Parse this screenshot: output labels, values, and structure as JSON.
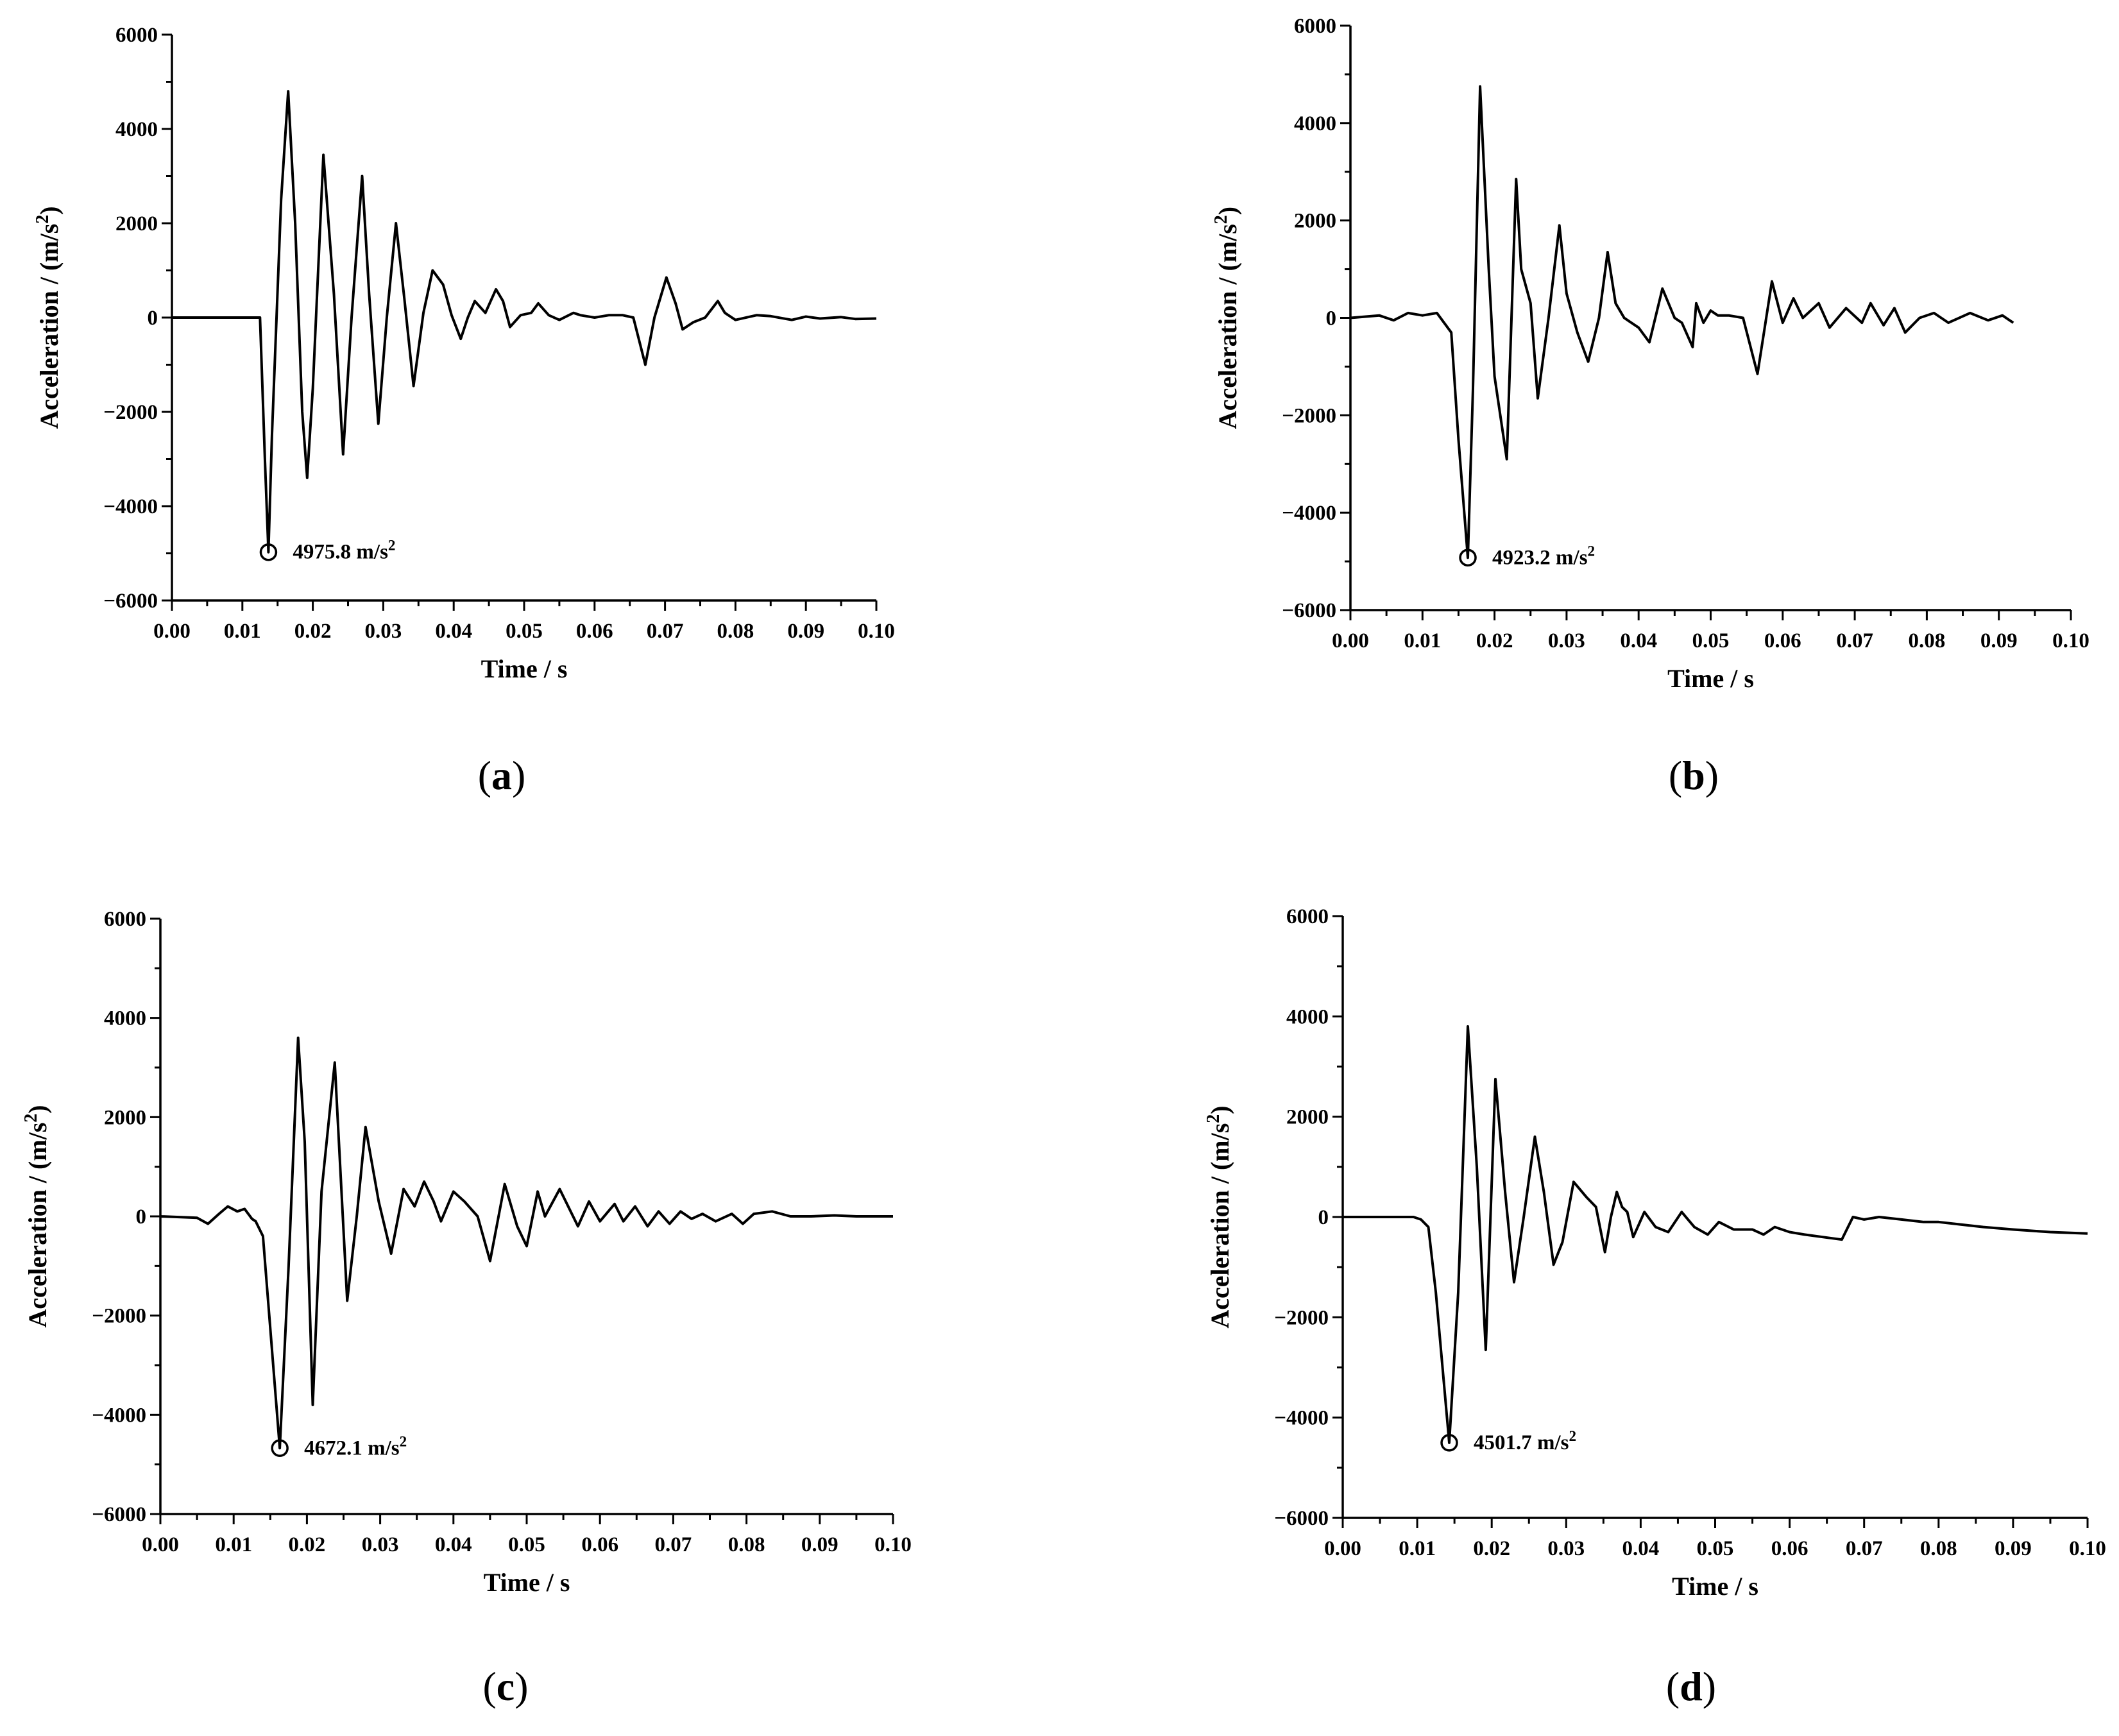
{
  "chart_data": [
    {
      "panel_label": "(a)",
      "panel_letter": "a",
      "type": "line",
      "xlabel": "Time / s",
      "ylabel": "Acceleration / (m/s2)",
      "xlim": [
        0,
        0.1
      ],
      "ylim": [
        -6000,
        6000
      ],
      "xticks": [
        "0.00",
        "0.01",
        "0.02",
        "0.03",
        "0.04",
        "0.05",
        "0.06",
        "0.07",
        "0.08",
        "0.09",
        "0.10"
      ],
      "yticks": [
        "6000",
        "4000",
        "2000",
        "0",
        "−2000",
        "−4000",
        "−6000"
      ],
      "annotation": {
        "text": "4975.8 m/s2",
        "x": 0.0137,
        "y": -4975.8
      },
      "series": [
        {
          "x": [
            0,
            0.0125,
            0.0132,
            0.0137,
            0.0142,
            0.0155,
            0.0165,
            0.0175,
            0.0185,
            0.0192,
            0.02,
            0.0215,
            0.023,
            0.0243,
            0.0255,
            0.027,
            0.028,
            0.0293,
            0.0305,
            0.0318,
            0.033,
            0.0343,
            0.0357,
            0.037,
            0.0385,
            0.0397,
            0.041,
            0.042,
            0.043,
            0.0445,
            0.046,
            0.047,
            0.048,
            0.0495,
            0.051,
            0.052,
            0.0535,
            0.055,
            0.057,
            0.058,
            0.06,
            0.062,
            0.064,
            0.0655,
            0.0672,
            0.0685,
            0.0702,
            0.0715,
            0.0725,
            0.074,
            0.0757,
            0.0775,
            0.0785,
            0.08,
            0.083,
            0.085,
            0.088,
            0.09,
            0.092,
            0.095,
            0.097,
            0.1
          ],
          "y": [
            0,
            0,
            -3000,
            -4975.8,
            -2500,
            2500,
            4800,
            2000,
            -2000,
            -3400,
            -1500,
            3450,
            500,
            -2900,
            0,
            3000,
            500,
            -2250,
            0,
            2000,
            400,
            -1450,
            100,
            1000,
            700,
            50,
            -450,
            0,
            350,
            100,
            600,
            350,
            -200,
            50,
            100,
            300,
            50,
            -50,
            100,
            50,
            0,
            50,
            50,
            0,
            -1000,
            0,
            850,
            300,
            -250,
            -100,
            0,
            350,
            100,
            -50,
            50,
            30,
            -50,
            20,
            -20,
            10,
            -30,
            -20
          ]
        }
      ]
    },
    {
      "panel_label": "(b)",
      "panel_letter": "b",
      "type": "line",
      "xlabel": "Time / s",
      "ylabel": "Acceleration / (m/s2)",
      "xlim": [
        0,
        0.1
      ],
      "ylim": [
        -6000,
        6000
      ],
      "xticks": [
        "0.00",
        "0.01",
        "0.02",
        "0.03",
        "0.04",
        "0.05",
        "0.06",
        "0.07",
        "0.08",
        "0.09",
        "0.10"
      ],
      "yticks": [
        "6000",
        "4000",
        "2000",
        "0",
        "−2000",
        "−4000",
        "−6000"
      ],
      "annotation": {
        "text": "4923.2 m/s2",
        "x": 0.0163,
        "y": -4923.2
      },
      "series": [
        {
          "x": [
            0,
            0.004,
            0.006,
            0.008,
            0.01,
            0.012,
            0.014,
            0.015,
            0.0163,
            0.017,
            0.018,
            0.0192,
            0.02,
            0.0217,
            0.023,
            0.0237,
            0.025,
            0.026,
            0.0275,
            0.029,
            0.03,
            0.0315,
            0.033,
            0.0345,
            0.0357,
            0.0368,
            0.038,
            0.04,
            0.0415,
            0.0433,
            0.045,
            0.046,
            0.0475,
            0.048,
            0.049,
            0.05,
            0.051,
            0.0525,
            0.0545,
            0.0565,
            0.0585,
            0.06,
            0.0615,
            0.0628,
            0.065,
            0.0665,
            0.0688,
            0.071,
            0.0722,
            0.074,
            0.0755,
            0.077,
            0.079,
            0.081,
            0.083,
            0.086,
            0.0885,
            0.0905,
            0.092
          ],
          "y": [
            0,
            50,
            -50,
            100,
            50,
            100,
            -300,
            -2500,
            -4923.2,
            -1500,
            4750,
            1000,
            -1200,
            -2900,
            2850,
            1000,
            300,
            -1650,
            0,
            1900,
            500,
            -300,
            -900,
            0,
            1350,
            300,
            0,
            -200,
            -500,
            600,
            0,
            -100,
            -600,
            300,
            -100,
            150,
            50,
            50,
            0,
            -1150,
            750,
            -100,
            400,
            0,
            300,
            -200,
            200,
            -100,
            300,
            -150,
            200,
            -300,
            0,
            100,
            -100,
            100,
            -50,
            50,
            -100
          ]
        }
      ]
    },
    {
      "panel_label": "(c)",
      "panel_letter": "c",
      "type": "line",
      "xlabel": "Time / s",
      "ylabel": "Acceleration / (m/s2)",
      "xlim": [
        0,
        0.1
      ],
      "ylim": [
        -6000,
        6000
      ],
      "xticks": [
        "0.00",
        "0.01",
        "0.02",
        "0.03",
        "0.04",
        "0.05",
        "0.06",
        "0.07",
        "0.08",
        "0.09",
        "0.10"
      ],
      "yticks": [
        "6000",
        "4000",
        "2000",
        "0",
        "−2000",
        "−4000",
        "−6000"
      ],
      "annotation": {
        "text": "4672.1 m/s2",
        "x": 0.0163,
        "y": -4672.1
      },
      "series": [
        {
          "x": [
            0,
            0.005,
            0.0065,
            0.008,
            0.0092,
            0.0105,
            0.0115,
            0.0125,
            0.013,
            0.014,
            0.0163,
            0.0175,
            0.0188,
            0.0197,
            0.0208,
            0.022,
            0.0238,
            0.0255,
            0.0268,
            0.028,
            0.0298,
            0.0315,
            0.0332,
            0.0347,
            0.036,
            0.0373,
            0.0383,
            0.04,
            0.0415,
            0.0433,
            0.045,
            0.047,
            0.0487,
            0.05,
            0.0515,
            0.0525,
            0.0545,
            0.057,
            0.0585,
            0.06,
            0.062,
            0.0632,
            0.0648,
            0.0665,
            0.068,
            0.0695,
            0.071,
            0.0725,
            0.074,
            0.0758,
            0.078,
            0.0795,
            0.081,
            0.0835,
            0.086,
            0.0888,
            0.092,
            0.095,
            0.1
          ],
          "y": [
            0,
            -30,
            -150,
            50,
            200,
            100,
            150,
            -50,
            -100,
            -400,
            -4672.1,
            -1000,
            3600,
            1500,
            -3800,
            500,
            3100,
            -1700,
            0,
            1800,
            300,
            -750,
            550,
            200,
            700,
            300,
            -100,
            500,
            300,
            0,
            -900,
            650,
            -200,
            -600,
            500,
            0,
            550,
            -200,
            300,
            -100,
            250,
            -100,
            200,
            -200,
            100,
            -150,
            100,
            -50,
            50,
            -100,
            50,
            -150,
            50,
            100,
            0,
            0,
            20,
            0,
            0
          ]
        }
      ]
    },
    {
      "panel_label": "(d)",
      "panel_letter": "d",
      "type": "line",
      "xlabel": "Time / s",
      "ylabel": "Acceleration / (m/s2)",
      "xlim": [
        0,
        0.1
      ],
      "ylim": [
        -6000,
        6000
      ],
      "xticks": [
        "0.00",
        "0.01",
        "0.02",
        "0.03",
        "0.04",
        "0.05",
        "0.06",
        "0.07",
        "0.08",
        "0.09",
        "0.10"
      ],
      "yticks": [
        "6000",
        "4000",
        "2000",
        "0",
        "−2000",
        "−4000",
        "−6000"
      ],
      "annotation": {
        "text": "4501.7 m/s2",
        "x": 0.0143,
        "y": -4501.7
      },
      "series": [
        {
          "x": [
            0,
            0.0095,
            0.0105,
            0.0115,
            0.0125,
            0.0143,
            0.0155,
            0.0168,
            0.018,
            0.0192,
            0.0205,
            0.0218,
            0.023,
            0.0243,
            0.0258,
            0.027,
            0.0283,
            0.0295,
            0.031,
            0.0327,
            0.034,
            0.0352,
            0.036,
            0.0368,
            0.0375,
            0.0382,
            0.039,
            0.0405,
            0.042,
            0.0437,
            0.0455,
            0.0472,
            0.049,
            0.0505,
            0.0525,
            0.055,
            0.0565,
            0.058,
            0.06,
            0.062,
            0.0645,
            0.067,
            0.0685,
            0.07,
            0.072,
            0.075,
            0.078,
            0.08,
            0.083,
            0.086,
            0.09,
            0.095,
            0.1
          ],
          "y": [
            0,
            0,
            -50,
            -200,
            -1500,
            -4501.7,
            -1500,
            3800,
            1000,
            -2650,
            2750,
            500,
            -1300,
            0,
            1600,
            500,
            -950,
            -500,
            700,
            400,
            200,
            -700,
            0,
            500,
            200,
            100,
            -400,
            100,
            -200,
            -300,
            100,
            -200,
            -350,
            -100,
            -250,
            -250,
            -350,
            -200,
            -300,
            -350,
            -400,
            -450,
            0,
            -50,
            0,
            -50,
            -100,
            -100,
            -150,
            -200,
            -250,
            -300,
            -330
          ]
        }
      ]
    }
  ]
}
